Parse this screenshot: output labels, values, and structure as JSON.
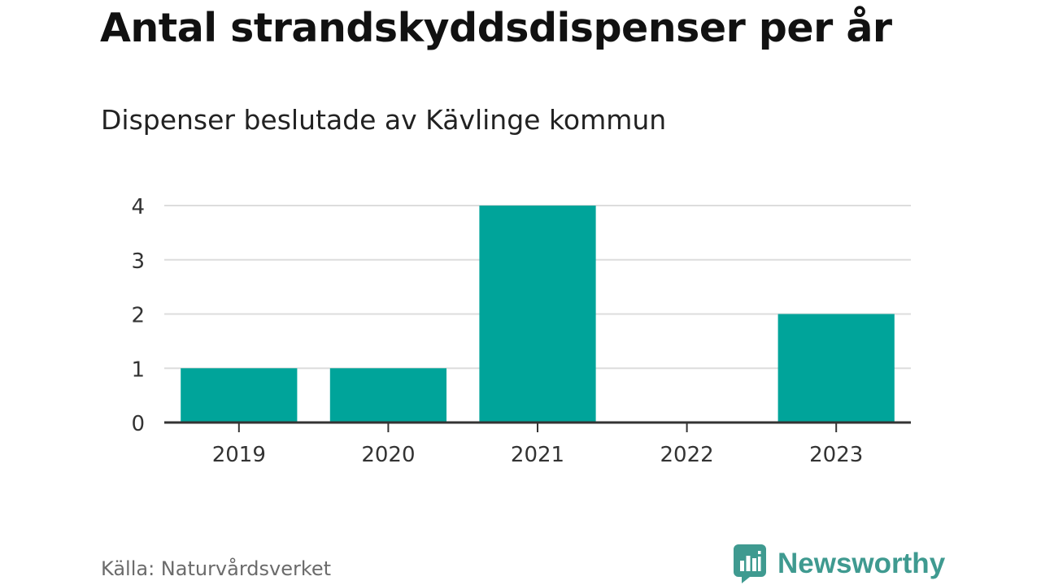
{
  "title": "Antal strandskyddsdispenser per år",
  "subtitle": "Dispenser beslutade av Kävlinge kommun",
  "source": "Källa: Naturvårdsverket",
  "brand": {
    "name": "Newsworthy",
    "icon": "newsworthy-logo-icon",
    "color": "#3f9a90"
  },
  "colors": {
    "bar": "#00a49a",
    "grid": "#dddddd",
    "axis": "#333333"
  },
  "chart_data": {
    "type": "bar",
    "categories": [
      "2019",
      "2020",
      "2021",
      "2022",
      "2023"
    ],
    "values": [
      1,
      1,
      4,
      0,
      2
    ],
    "title": "Antal strandskyddsdispenser per år",
    "subtitle": "Dispenser beslutade av Kävlinge kommun",
    "xlabel": "",
    "ylabel": "",
    "ylim": [
      0,
      4
    ],
    "yticks": [
      0,
      1,
      2,
      3,
      4
    ],
    "grid": true,
    "legend": "none"
  }
}
